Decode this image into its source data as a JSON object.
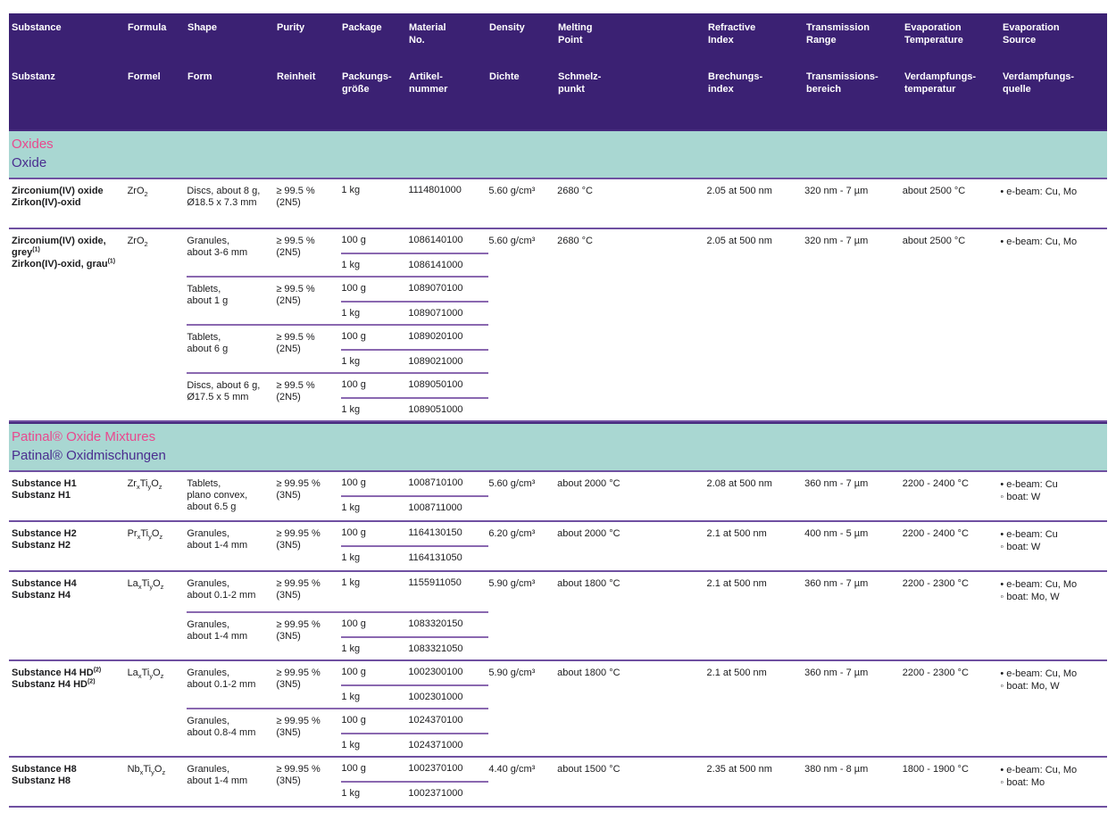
{
  "colors": {
    "header_bg": "#3b2173",
    "header_text": "#ffffff",
    "section_band_bg": "#a9d7d2",
    "section_title_pink": "#e8498e",
    "section_title_purple": "#4a2d8f",
    "divider_purple": "#6f50a1",
    "inner_divider_purple": "#8a68b0"
  },
  "table": {
    "columns": [
      {
        "key": "substance",
        "en": "Substance",
        "de": "Substanz"
      },
      {
        "key": "formula",
        "en": "Formula",
        "de": "Formel"
      },
      {
        "key": "shape",
        "en": "Shape",
        "de": "Form"
      },
      {
        "key": "purity",
        "en": "Purity",
        "de": "Reinheit"
      },
      {
        "key": "package",
        "en": "Package",
        "de": "Packungs-\ngröße"
      },
      {
        "key": "material-no",
        "en": "Material\nNo.",
        "de": "Artikel-\nnummer"
      },
      {
        "key": "density",
        "en": "Density",
        "de": "Dichte"
      },
      {
        "key": "melting-point",
        "en": "Melting\nPoint",
        "de": "Schmelz-\npunkt"
      },
      {
        "key": "refractive-index",
        "en": "Refractive\nIndex",
        "de": "Brechungs-\nindex"
      },
      {
        "key": "transmission-range",
        "en": "Transmission\nRange",
        "de": "Transmissions-\nbereich"
      },
      {
        "key": "evaporation-temperature",
        "en": "Evaporation\nTemperature",
        "de": "Verdampfungs-\ntemperatur"
      },
      {
        "key": "evaporation-source",
        "en": "Evaporation\nSource",
        "de": "Verdampfungs-\nquelle"
      }
    ],
    "sections": [
      {
        "title_en": "Oxides",
        "title_de": "Oxide",
        "substances": [
          {
            "names": [
              {
                "text": "Zirconium(IV) oxide",
                "sup": ""
              },
              {
                "text": "Zirkon(IV)-oxid",
                "sup": ""
              }
            ],
            "formula": [
              {
                "t": "ZrO",
                "s": "2"
              }
            ],
            "groups": [
              {
                "shape": "Discs, about 8 g,\nØ18.5 x 7.3 mm",
                "purity": "≥ 99.5 %\n(2N5)",
                "packages": [
                  {
                    "size": "1 kg",
                    "mat": "1114801000"
                  }
                ]
              }
            ],
            "density": "5.60 g/cm³",
            "melting": "2680 °C",
            "refractive": "2.05 at 500 nm",
            "transmission": "320 nm - 7 µm",
            "evap_temp": "about 2500 °C",
            "sources": [
              "• e-beam: Cu, Mo"
            ]
          },
          {
            "names": [
              {
                "text": "Zirconium(IV) oxide, grey",
                "sup": "(1)"
              },
              {
                "text": "Zirkon(IV)-oxid, grau",
                "sup": "(1)"
              }
            ],
            "formula": [
              {
                "t": "ZrO",
                "s": "2"
              }
            ],
            "groups": [
              {
                "shape": "Granules,\nabout 3-6 mm",
                "purity": "≥ 99.5 %\n(2N5)",
                "packages": [
                  {
                    "size": "100 g",
                    "mat": "1086140100"
                  },
                  {
                    "size": "1 kg",
                    "mat": "1086141000"
                  }
                ]
              },
              {
                "shape": "Tablets,\nabout 1 g",
                "purity": "≥ 99.5 %\n(2N5)",
                "packages": [
                  {
                    "size": "100 g",
                    "mat": "1089070100"
                  },
                  {
                    "size": "1 kg",
                    "mat": "1089071000"
                  }
                ]
              },
              {
                "shape": "Tablets,\nabout 6 g",
                "purity": "≥ 99.5 %\n(2N5)",
                "packages": [
                  {
                    "size": "100 g",
                    "mat": "1089020100"
                  },
                  {
                    "size": "1 kg",
                    "mat": "1089021000"
                  }
                ]
              },
              {
                "shape": "Discs, about 6 g,\nØ17.5 x 5 mm",
                "purity": "≥ 99.5 %\n(2N5)",
                "packages": [
                  {
                    "size": "100 g",
                    "mat": "1089050100"
                  },
                  {
                    "size": "1 kg",
                    "mat": "1089051000"
                  }
                ]
              }
            ],
            "density": "5.60 g/cm³",
            "melting": "2680 °C",
            "refractive": "2.05 at 500 nm",
            "transmission": "320 nm - 7 µm",
            "evap_temp": "about 2500 °C",
            "sources": [
              "• e-beam: Cu, Mo"
            ]
          }
        ]
      },
      {
        "title_en": "Patinal® Oxide Mixtures",
        "title_de": "Patinal® Oxidmischungen",
        "substances": [
          {
            "names": [
              {
                "text": "Substance H1",
                "sup": ""
              },
              {
                "text": "Substanz H1",
                "sup": ""
              }
            ],
            "formula": [
              {
                "t": "Zr",
                "s": "x"
              },
              {
                "t": "Ti",
                "s": "y"
              },
              {
                "t": "O",
                "s": "z"
              }
            ],
            "groups": [
              {
                "shape": "Tablets,\nplano convex,\nabout 6.5 g",
                "purity": "≥ 99.95 %\n(3N5)",
                "packages": [
                  {
                    "size": "100 g",
                    "mat": "1008710100"
                  },
                  {
                    "size": "1 kg",
                    "mat": "1008711000"
                  }
                ]
              }
            ],
            "density": "5.60 g/cm³",
            "melting": "about 2000 °C",
            "refractive": "2.08 at 500 nm",
            "transmission": "360 nm - 7 µm",
            "evap_temp": "2200 - 2400 °C",
            "sources": [
              "• e-beam: Cu",
              "◦ boat: W"
            ]
          },
          {
            "names": [
              {
                "text": "Substance H2",
                "sup": ""
              },
              {
                "text": "Substanz H2",
                "sup": ""
              }
            ],
            "formula": [
              {
                "t": "Pr",
                "s": "x"
              },
              {
                "t": "Ti",
                "s": "y"
              },
              {
                "t": "O",
                "s": "z"
              }
            ],
            "groups": [
              {
                "shape": "Granules,\nabout 1-4 mm",
                "purity": "≥ 99.95 %\n(3N5)",
                "packages": [
                  {
                    "size": "100 g",
                    "mat": "1164130150"
                  },
                  {
                    "size": "1 kg",
                    "mat": "1164131050"
                  }
                ]
              }
            ],
            "density": "6.20 g/cm³",
            "melting": "about 2000 °C",
            "refractive": "2.1 at 500 nm",
            "transmission": "400 nm - 5 µm",
            "evap_temp": "2200 - 2400 °C",
            "sources": [
              "• e-beam: Cu",
              "◦ boat: W"
            ]
          },
          {
            "names": [
              {
                "text": "Substance H4",
                "sup": ""
              },
              {
                "text": "Substanz H4",
                "sup": ""
              }
            ],
            "formula": [
              {
                "t": "La",
                "s": "x"
              },
              {
                "t": "Ti",
                "s": "y"
              },
              {
                "t": "O",
                "s": "z"
              }
            ],
            "groups": [
              {
                "shape": "Granules,\nabout 0.1-2 mm",
                "purity": "≥ 99.95 %\n(3N5)",
                "packages": [
                  {
                    "size": "1 kg",
                    "mat": "1155911050"
                  }
                ]
              },
              {
                "shape": "Granules,\nabout 1-4 mm",
                "purity": "≥ 99.95 %\n(3N5)",
                "packages": [
                  {
                    "size": "100 g",
                    "mat": "1083320150"
                  },
                  {
                    "size": "1 kg",
                    "mat": "1083321050"
                  }
                ]
              }
            ],
            "density": "5.90 g/cm³",
            "melting": "about 1800 °C",
            "refractive": "2.1 at 500 nm",
            "transmission": "360 nm - 7 µm",
            "evap_temp": "2200 - 2300 °C",
            "sources": [
              "• e-beam: Cu, Mo",
              "◦ boat: Mo, W"
            ]
          },
          {
            "names": [
              {
                "text": "Substance H4 HD",
                "sup": "(2)"
              },
              {
                "text": "Substanz H4 HD",
                "sup": "(2)"
              }
            ],
            "formula": [
              {
                "t": "La",
                "s": "x"
              },
              {
                "t": "Ti",
                "s": "y"
              },
              {
                "t": "O",
                "s": "z"
              }
            ],
            "groups": [
              {
                "shape": "Granules,\nabout 0.1-2 mm",
                "purity": "≥ 99.95 %\n(3N5)",
                "packages": [
                  {
                    "size": "100 g",
                    "mat": "1002300100"
                  },
                  {
                    "size": "1 kg",
                    "mat": "1002301000"
                  }
                ]
              },
              {
                "shape": "Granules,\nabout 0.8-4 mm",
                "purity": "≥ 99.95 %\n(3N5)",
                "packages": [
                  {
                    "size": "100 g",
                    "mat": "1024370100"
                  },
                  {
                    "size": "1 kg",
                    "mat": "1024371000"
                  }
                ]
              }
            ],
            "density": "5.90 g/cm³",
            "melting": "about 1800 °C",
            "refractive": "2.1 at 500 nm",
            "transmission": "360 nm - 7 µm",
            "evap_temp": "2200 - 2300 °C",
            "sources": [
              "• e-beam: Cu, Mo",
              "◦ boat: Mo, W"
            ]
          },
          {
            "names": [
              {
                "text": "Substance H8",
                "sup": ""
              },
              {
                "text": "Substanz H8",
                "sup": ""
              }
            ],
            "formula": [
              {
                "t": "Nb",
                "s": "x"
              },
              {
                "t": "Ti",
                "s": "y"
              },
              {
                "t": "O",
                "s": "z"
              }
            ],
            "groups": [
              {
                "shape": "Granules,\nabout 1-4 mm",
                "purity": "≥ 99.95 %\n(3N5)",
                "packages": [
                  {
                    "size": "100 g",
                    "mat": "1002370100"
                  },
                  {
                    "size": "1 kg",
                    "mat": "1002371000"
                  }
                ]
              }
            ],
            "density": "4.40 g/cm³",
            "melting": "about 1500 °C",
            "refractive": "2.35 at 500 nm",
            "transmission": "380 nm - 8 µm",
            "evap_temp": "1800 - 1900 °C",
            "sources": [
              "• e-beam: Cu, Mo",
              "◦ boat: Mo"
            ]
          }
        ]
      }
    ]
  }
}
